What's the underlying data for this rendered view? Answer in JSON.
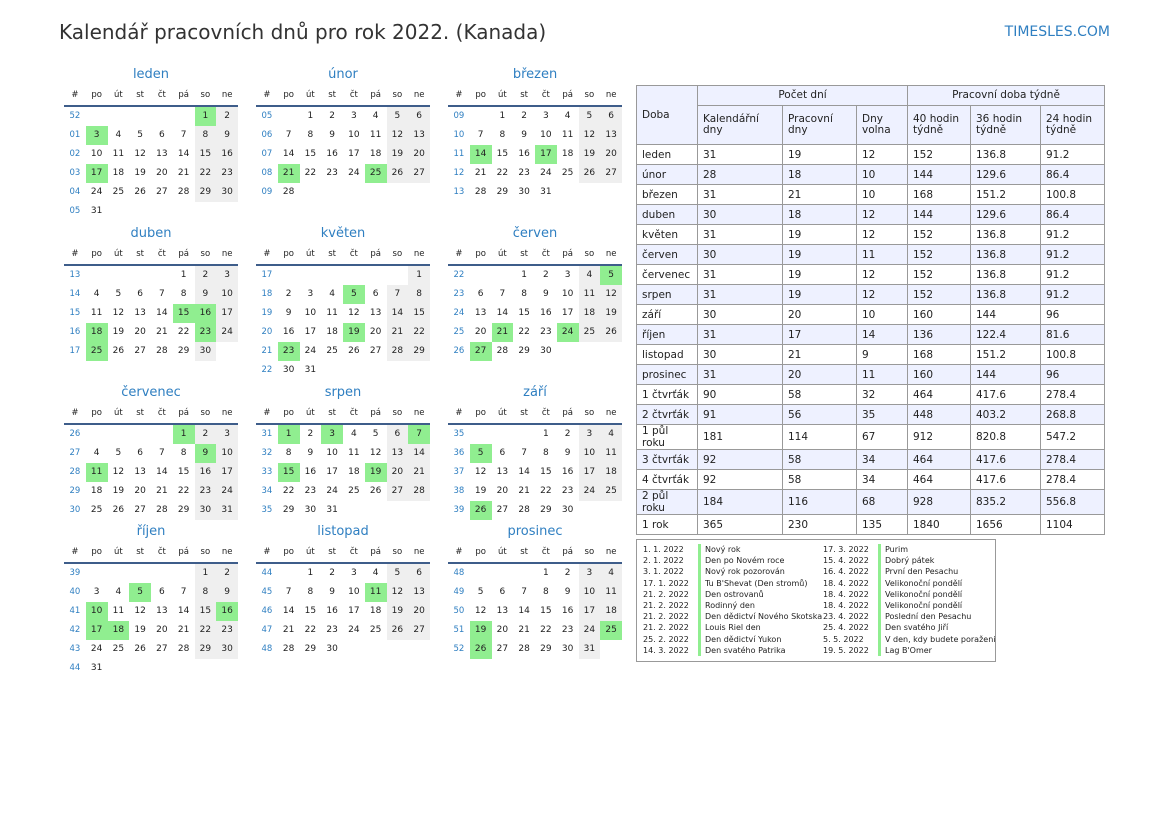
{
  "header": {
    "title": "Kalendář pracovních dnů pro rok 2022. (Kanada)",
    "site": "TIMESLES.COM"
  },
  "weekday_headers": [
    "#",
    "po",
    "út",
    "st",
    "čt",
    "pá",
    "so",
    "ne"
  ],
  "months": [
    {
      "name": "leden",
      "rows": [
        {
          "week": "52",
          "days": [
            "",
            "",
            "",
            "",
            "",
            "1",
            "2"
          ],
          "holidays": [
            "1"
          ]
        },
        {
          "week": "01",
          "days": [
            "3",
            "4",
            "5",
            "6",
            "7",
            "8",
            "9"
          ],
          "holidays": [
            "3"
          ]
        },
        {
          "week": "02",
          "days": [
            "10",
            "11",
            "12",
            "13",
            "14",
            "15",
            "16"
          ]
        },
        {
          "week": "03",
          "days": [
            "17",
            "18",
            "19",
            "20",
            "21",
            "22",
            "23"
          ],
          "holidays": [
            "17"
          ]
        },
        {
          "week": "04",
          "days": [
            "24",
            "25",
            "26",
            "27",
            "28",
            "29",
            "30"
          ]
        },
        {
          "week": "05",
          "days": [
            "31",
            "",
            "",
            "",
            "",
            "",
            ""
          ]
        }
      ]
    },
    {
      "name": "únor",
      "rows": [
        {
          "week": "05",
          "days": [
            "",
            "1",
            "2",
            "3",
            "4",
            "5",
            "6"
          ]
        },
        {
          "week": "06",
          "days": [
            "7",
            "8",
            "9",
            "10",
            "11",
            "12",
            "13"
          ]
        },
        {
          "week": "07",
          "days": [
            "14",
            "15",
            "16",
            "17",
            "18",
            "19",
            "20"
          ]
        },
        {
          "week": "08",
          "days": [
            "21",
            "22",
            "23",
            "24",
            "25",
            "26",
            "27"
          ],
          "holidays": [
            "21",
            "25"
          ]
        },
        {
          "week": "09",
          "days": [
            "28",
            "",
            "",
            "",
            "",
            "",
            ""
          ]
        }
      ]
    },
    {
      "name": "březen",
      "rows": [
        {
          "week": "09",
          "days": [
            "",
            "1",
            "2",
            "3",
            "4",
            "5",
            "6"
          ]
        },
        {
          "week": "10",
          "days": [
            "7",
            "8",
            "9",
            "10",
            "11",
            "12",
            "13"
          ]
        },
        {
          "week": "11",
          "days": [
            "14",
            "15",
            "16",
            "17",
            "18",
            "19",
            "20"
          ],
          "holidays": [
            "14",
            "17"
          ]
        },
        {
          "week": "12",
          "days": [
            "21",
            "22",
            "23",
            "24",
            "25",
            "26",
            "27"
          ]
        },
        {
          "week": "13",
          "days": [
            "28",
            "29",
            "30",
            "31",
            "",
            "",
            ""
          ]
        }
      ]
    },
    {
      "name": "duben",
      "rows": [
        {
          "week": "13",
          "days": [
            "",
            "",
            "",
            "",
            "1",
            "2",
            "3"
          ]
        },
        {
          "week": "14",
          "days": [
            "4",
            "5",
            "6",
            "7",
            "8",
            "9",
            "10"
          ]
        },
        {
          "week": "15",
          "days": [
            "11",
            "12",
            "13",
            "14",
            "15",
            "16",
            "17"
          ],
          "holidays": [
            "15",
            "16"
          ]
        },
        {
          "week": "16",
          "days": [
            "18",
            "19",
            "20",
            "21",
            "22",
            "23",
            "24"
          ],
          "holidays": [
            "18",
            "23"
          ]
        },
        {
          "week": "17",
          "days": [
            "25",
            "26",
            "27",
            "28",
            "29",
            "30",
            ""
          ],
          "holidays": [
            "25"
          ]
        }
      ]
    },
    {
      "name": "květen",
      "rows": [
        {
          "week": "17",
          "days": [
            "",
            "",
            "",
            "",
            "",
            "",
            "1"
          ]
        },
        {
          "week": "18",
          "days": [
            "2",
            "3",
            "4",
            "5",
            "6",
            "7",
            "8"
          ],
          "holidays": [
            "5"
          ]
        },
        {
          "week": "19",
          "days": [
            "9",
            "10",
            "11",
            "12",
            "13",
            "14",
            "15"
          ]
        },
        {
          "week": "20",
          "days": [
            "16",
            "17",
            "18",
            "19",
            "20",
            "21",
            "22"
          ],
          "holidays": [
            "19"
          ]
        },
        {
          "week": "21",
          "days": [
            "23",
            "24",
            "25",
            "26",
            "27",
            "28",
            "29"
          ],
          "holidays": [
            "23"
          ]
        },
        {
          "week": "22",
          "days": [
            "30",
            "31",
            "",
            "",
            "",
            "",
            ""
          ]
        }
      ]
    },
    {
      "name": "červen",
      "rows": [
        {
          "week": "22",
          "days": [
            "",
            "",
            "1",
            "2",
            "3",
            "4",
            "5"
          ],
          "holidays": [
            "5"
          ]
        },
        {
          "week": "23",
          "days": [
            "6",
            "7",
            "8",
            "9",
            "10",
            "11",
            "12"
          ]
        },
        {
          "week": "24",
          "days": [
            "13",
            "14",
            "15",
            "16",
            "17",
            "18",
            "19"
          ]
        },
        {
          "week": "25",
          "days": [
            "20",
            "21",
            "22",
            "23",
            "24",
            "25",
            "26"
          ],
          "holidays": [
            "21",
            "24"
          ]
        },
        {
          "week": "26",
          "days": [
            "27",
            "28",
            "29",
            "30",
            "",
            "",
            ""
          ],
          "holidays": [
            "27"
          ]
        }
      ]
    },
    {
      "name": "červenec",
      "rows": [
        {
          "week": "26",
          "days": [
            "",
            "",
            "",
            "",
            "1",
            "2",
            "3"
          ],
          "holidays": [
            "1"
          ]
        },
        {
          "week": "27",
          "days": [
            "4",
            "5",
            "6",
            "7",
            "8",
            "9",
            "10"
          ],
          "holidays": [
            "9"
          ]
        },
        {
          "week": "28",
          "days": [
            "11",
            "12",
            "13",
            "14",
            "15",
            "16",
            "17"
          ],
          "holidays": [
            "11"
          ]
        },
        {
          "week": "29",
          "days": [
            "18",
            "19",
            "20",
            "21",
            "22",
            "23",
            "24"
          ]
        },
        {
          "week": "30",
          "days": [
            "25",
            "26",
            "27",
            "28",
            "29",
            "30",
            "31"
          ]
        }
      ]
    },
    {
      "name": "srpen",
      "rows": [
        {
          "week": "31",
          "days": [
            "1",
            "2",
            "3",
            "4",
            "5",
            "6",
            "7"
          ],
          "holidays": [
            "1",
            "3",
            "7"
          ]
        },
        {
          "week": "32",
          "days": [
            "8",
            "9",
            "10",
            "11",
            "12",
            "13",
            "14"
          ]
        },
        {
          "week": "33",
          "days": [
            "15",
            "16",
            "17",
            "18",
            "19",
            "20",
            "21"
          ],
          "holidays": [
            "15",
            "19"
          ]
        },
        {
          "week": "34",
          "days": [
            "22",
            "23",
            "24",
            "25",
            "26",
            "27",
            "28"
          ]
        },
        {
          "week": "35",
          "days": [
            "29",
            "30",
            "31",
            "",
            "",
            "",
            ""
          ]
        }
      ]
    },
    {
      "name": "září",
      "rows": [
        {
          "week": "35",
          "days": [
            "",
            "",
            "",
            "1",
            "2",
            "3",
            "4"
          ]
        },
        {
          "week": "36",
          "days": [
            "5",
            "6",
            "7",
            "8",
            "9",
            "10",
            "11"
          ],
          "holidays": [
            "5"
          ]
        },
        {
          "week": "37",
          "days": [
            "12",
            "13",
            "14",
            "15",
            "16",
            "17",
            "18"
          ]
        },
        {
          "week": "38",
          "days": [
            "19",
            "20",
            "21",
            "22",
            "23",
            "24",
            "25"
          ]
        },
        {
          "week": "39",
          "days": [
            "26",
            "27",
            "28",
            "29",
            "30",
            "",
            ""
          ],
          "holidays": [
            "26"
          ]
        }
      ]
    },
    {
      "name": "říjen",
      "rows": [
        {
          "week": "39",
          "days": [
            "",
            "",
            "",
            "",
            "",
            "1",
            "2"
          ]
        },
        {
          "week": "40",
          "days": [
            "3",
            "4",
            "5",
            "6",
            "7",
            "8",
            "9"
          ],
          "holidays": [
            "5"
          ]
        },
        {
          "week": "41",
          "days": [
            "10",
            "11",
            "12",
            "13",
            "14",
            "15",
            "16"
          ],
          "holidays": [
            "10",
            "16"
          ]
        },
        {
          "week": "42",
          "days": [
            "17",
            "18",
            "19",
            "20",
            "21",
            "22",
            "23"
          ],
          "holidays": [
            "17",
            "18"
          ]
        },
        {
          "week": "43",
          "days": [
            "24",
            "25",
            "26",
            "27",
            "28",
            "29",
            "30"
          ]
        },
        {
          "week": "44",
          "days": [
            "31",
            "",
            "",
            "",
            "",
            "",
            ""
          ]
        }
      ]
    },
    {
      "name": "listopad",
      "rows": [
        {
          "week": "44",
          "days": [
            "",
            "1",
            "2",
            "3",
            "4",
            "5",
            "6"
          ]
        },
        {
          "week": "45",
          "days": [
            "7",
            "8",
            "9",
            "10",
            "11",
            "12",
            "13"
          ],
          "holidays": [
            "11"
          ]
        },
        {
          "week": "46",
          "days": [
            "14",
            "15",
            "16",
            "17",
            "18",
            "19",
            "20"
          ]
        },
        {
          "week": "47",
          "days": [
            "21",
            "22",
            "23",
            "24",
            "25",
            "26",
            "27"
          ]
        },
        {
          "week": "48",
          "days": [
            "28",
            "29",
            "30",
            "",
            "",
            "",
            ""
          ]
        }
      ]
    },
    {
      "name": "prosinec",
      "rows": [
        {
          "week": "48",
          "days": [
            "",
            "",
            "",
            "1",
            "2",
            "3",
            "4"
          ]
        },
        {
          "week": "49",
          "days": [
            "5",
            "6",
            "7",
            "8",
            "9",
            "10",
            "11"
          ]
        },
        {
          "week": "50",
          "days": [
            "12",
            "13",
            "14",
            "15",
            "16",
            "17",
            "18"
          ]
        },
        {
          "week": "51",
          "days": [
            "19",
            "20",
            "21",
            "22",
            "23",
            "24",
            "25"
          ],
          "holidays": [
            "19",
            "25"
          ]
        },
        {
          "week": "52",
          "days": [
            "26",
            "27",
            "28",
            "29",
            "30",
            "31",
            ""
          ],
          "holidays": [
            "26"
          ]
        }
      ]
    }
  ],
  "stats": {
    "headers": {
      "period": "Doba",
      "days_group": "Počet dní",
      "hours_group": "Pracovní doba týdně",
      "calendar_days": "Kalendářní dny",
      "working_days": "Pracovní dny",
      "days_off": "Dny volna",
      "h40": "40 hodin týdně",
      "h36": "36 hodin týdně",
      "h24": "24 hodin týdně"
    },
    "rows": [
      [
        "leden",
        "31",
        "19",
        "12",
        "152",
        "136.8",
        "91.2"
      ],
      [
        "únor",
        "28",
        "18",
        "10",
        "144",
        "129.6",
        "86.4"
      ],
      [
        "březen",
        "31",
        "21",
        "10",
        "168",
        "151.2",
        "100.8"
      ],
      [
        "duben",
        "30",
        "18",
        "12",
        "144",
        "129.6",
        "86.4"
      ],
      [
        "květen",
        "31",
        "19",
        "12",
        "152",
        "136.8",
        "91.2"
      ],
      [
        "červen",
        "30",
        "19",
        "11",
        "152",
        "136.8",
        "91.2"
      ],
      [
        "červenec",
        "31",
        "19",
        "12",
        "152",
        "136.8",
        "91.2"
      ],
      [
        "srpen",
        "31",
        "19",
        "12",
        "152",
        "136.8",
        "91.2"
      ],
      [
        "září",
        "30",
        "20",
        "10",
        "160",
        "144",
        "96"
      ],
      [
        "říjen",
        "31",
        "17",
        "14",
        "136",
        "122.4",
        "81.6"
      ],
      [
        "listopad",
        "30",
        "21",
        "9",
        "168",
        "151.2",
        "100.8"
      ],
      [
        "prosinec",
        "31",
        "20",
        "11",
        "160",
        "144",
        "96"
      ],
      [
        "1 čtvrťák",
        "90",
        "58",
        "32",
        "464",
        "417.6",
        "278.4"
      ],
      [
        "2 čtvrťák",
        "91",
        "56",
        "35",
        "448",
        "403.2",
        "268.8"
      ],
      [
        "1 půl roku",
        "181",
        "114",
        "67",
        "912",
        "820.8",
        "547.2"
      ],
      [
        "3 čtvrťák",
        "92",
        "58",
        "34",
        "464",
        "417.6",
        "278.4"
      ],
      [
        "4 čtvrťák",
        "92",
        "58",
        "34",
        "464",
        "417.6",
        "278.4"
      ],
      [
        "2 půl roku",
        "184",
        "116",
        "68",
        "928",
        "835.2",
        "556.8"
      ],
      [
        "1 rok",
        "365",
        "230",
        "135",
        "1840",
        "1656",
        "1104"
      ]
    ]
  },
  "holidays": [
    {
      "date": "1. 1. 2022",
      "name": "Nový rok"
    },
    {
      "date": "2. 1. 2022",
      "name": "Den po Novém roce"
    },
    {
      "date": "3. 1. 2022",
      "name": "Nový rok pozorován"
    },
    {
      "date": "17. 1. 2022",
      "name": "Tu B'Shevat (Den stromů)"
    },
    {
      "date": "21. 2. 2022",
      "name": "Den ostrovanů"
    },
    {
      "date": "21. 2. 2022",
      "name": "Rodinný den"
    },
    {
      "date": "21. 2. 2022",
      "name": "Den dědictví Nového Skotska"
    },
    {
      "date": "21. 2. 2022",
      "name": "Louis Riel den"
    },
    {
      "date": "25. 2. 2022",
      "name": "Den dědictví Yukon"
    },
    {
      "date": "14. 3. 2022",
      "name": "Den svatého Patrika"
    },
    {
      "date": "17. 3. 2022",
      "name": "Purim"
    },
    {
      "date": "15. 4. 2022",
      "name": "Dobrý pátek"
    },
    {
      "date": "16. 4. 2022",
      "name": "První den Pesachu"
    },
    {
      "date": "18. 4. 2022",
      "name": "Velikonoční pondělí"
    },
    {
      "date": "18. 4. 2022",
      "name": "Velikonoční pondělí"
    },
    {
      "date": "18. 4. 2022",
      "name": "Velikonoční pondělí"
    },
    {
      "date": "23. 4. 2022",
      "name": "Poslední den Pesachu"
    },
    {
      "date": "25. 4. 2022",
      "name": "Den svatého Jiří"
    },
    {
      "date": "5. 5. 2022",
      "name": "V den, kdy budete poraženi"
    },
    {
      "date": "19. 5. 2022",
      "name": "Lag B'Omer"
    }
  ]
}
